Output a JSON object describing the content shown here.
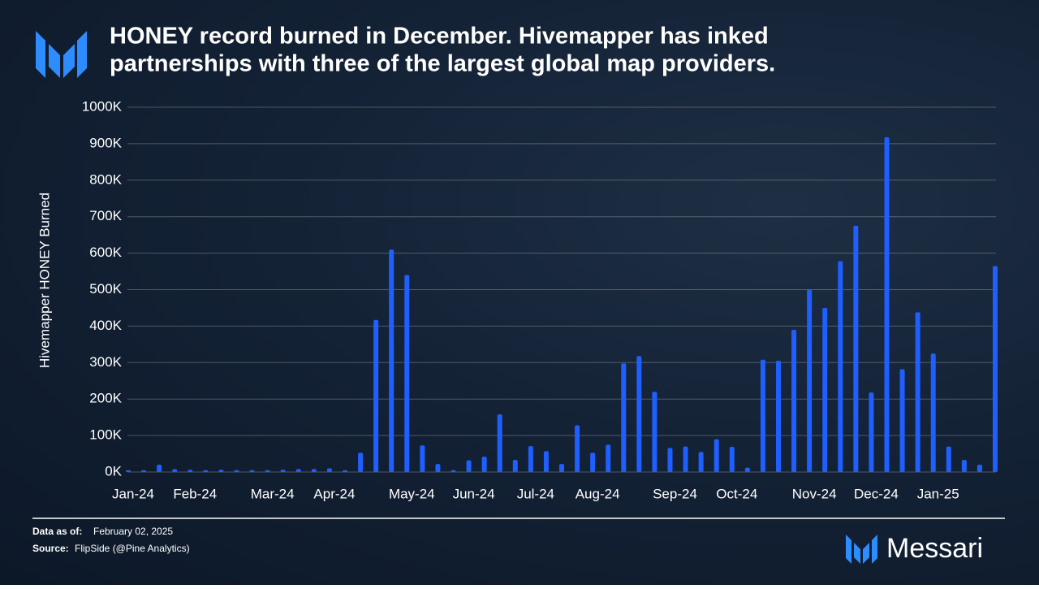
{
  "chart_data": {
    "type": "bar",
    "title": "HONEY record burned in December. Hivemapper has inked partnerships with three of the largest global map providers.",
    "y_label": "Hivemapper HONEY Burned",
    "color": "#1f5fff",
    "grid": true,
    "categories": [
      "Jan-24",
      null,
      null,
      null,
      "Feb-24",
      null,
      null,
      null,
      null,
      "Mar-24",
      null,
      null,
      null,
      "Apr-24",
      null,
      null,
      null,
      null,
      "May-24",
      null,
      null,
      null,
      "Jun-24",
      null,
      null,
      null,
      "Jul-24",
      null,
      null,
      null,
      "Aug-24",
      null,
      null,
      null,
      null,
      "Sep-24",
      null,
      null,
      null,
      "Oct-24",
      null,
      null,
      null,
      null,
      "Nov-24",
      null,
      null,
      null,
      "Dec-24",
      null,
      null,
      null,
      "Jan-25",
      null,
      null,
      null,
      null
    ],
    "values": [
      5000,
      5000,
      20000,
      8000,
      6000,
      5000,
      6000,
      5000,
      5000,
      5000,
      6000,
      8000,
      8000,
      10000,
      5000,
      53000,
      417000,
      610000,
      540000,
      73000,
      22000,
      5000,
      32000,
      42000,
      158000,
      33000,
      71000,
      57000,
      22000,
      128000,
      53000,
      75000,
      298000,
      318000,
      220000,
      66000,
      70000,
      55000,
      90000,
      69000,
      12000,
      308000,
      305000,
      390000,
      500000,
      450000,
      578000,
      675000,
      218000,
      918000,
      282000,
      438000,
      325000,
      70000,
      33000,
      20000,
      565000
    ],
    "ylim": [
      0,
      1000000
    ],
    "yticks": [
      {
        "value": 0,
        "label": "0K"
      },
      {
        "value": 100000,
        "label": "100K"
      },
      {
        "value": 200000,
        "label": "200K"
      },
      {
        "value": 300000,
        "label": "300K"
      },
      {
        "value": 400000,
        "label": "400K"
      },
      {
        "value": 500000,
        "label": "500K"
      },
      {
        "value": 600000,
        "label": "600K"
      },
      {
        "value": 700000,
        "label": "700K"
      },
      {
        "value": 800000,
        "label": "800K"
      },
      {
        "value": 900000,
        "label": "900K"
      },
      {
        "value": 1000000,
        "label": "1000K"
      }
    ]
  },
  "footer": {
    "data_as_of_label": "Data as of:",
    "data_as_of": "February 02, 2025",
    "source_label": "Source:",
    "source": "FlipSide (@Pine Analytics)",
    "brand": "Messari"
  }
}
